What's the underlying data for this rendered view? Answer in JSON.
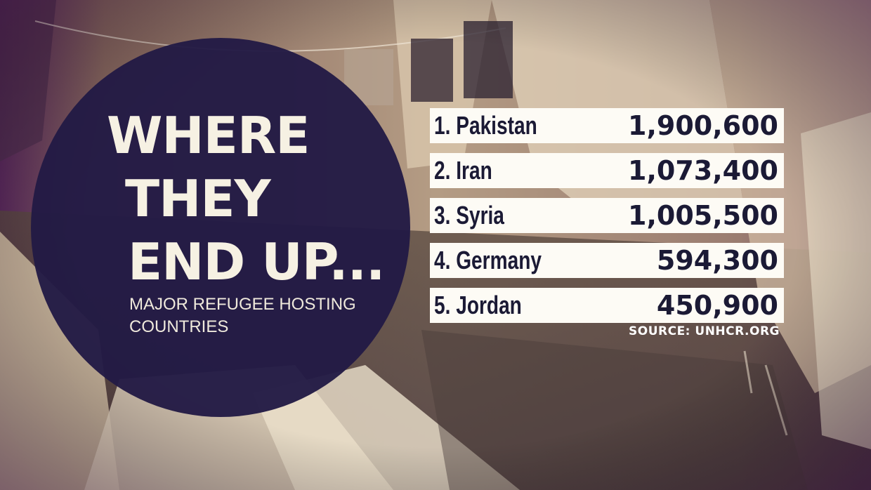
{
  "headline": {
    "line1": "WHERE",
    "line2": "THEY",
    "line3": "END UP..."
  },
  "subtitle": {
    "line1": "MAJOR REFUGEE HOSTING",
    "line2": "COUNTRIES"
  },
  "rows": [
    {
      "label": "1. Pakistan",
      "value": "1,900,600"
    },
    {
      "label": "2. Iran",
      "value": "1,073,400"
    },
    {
      "label": "3. Syria",
      "value": "1,005,500"
    },
    {
      "label": "4. Germany",
      "value": "594,300"
    },
    {
      "label": "5. Jordan",
      "value": "450,900"
    }
  ],
  "source": "SOURCE: UNHCR.ORG",
  "colors": {
    "circle": "#221a45",
    "row_background": "#fdfbf5",
    "row_text": "#1b1a35",
    "photo_tint": "#b8a088"
  }
}
